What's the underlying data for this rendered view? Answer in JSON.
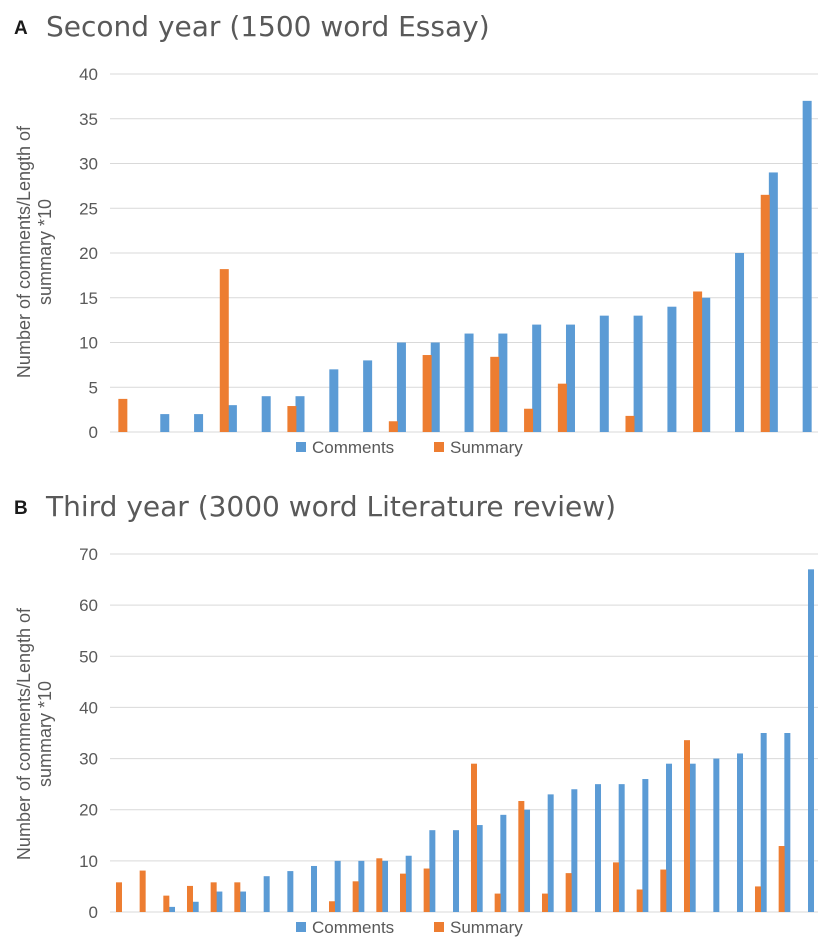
{
  "colors": {
    "comments": "#5b9bd5",
    "summary": "#ed7d31",
    "grid": "#d9d9d9",
    "text": "#595959"
  },
  "panels": [
    {
      "letter": "A",
      "title": "Second year (1500 word Essay)"
    },
    {
      "letter": "B",
      "title": "Third year (3000 word Literature review)"
    }
  ],
  "chart_data": [
    {
      "type": "bar",
      "title": "Second year (1500 word Essay)",
      "xlabel": "",
      "ylabel": "Number of comments/Length of summary *10",
      "ylim": [
        0,
        40
      ],
      "yticks": [
        0,
        5,
        10,
        15,
        20,
        25,
        30,
        35,
        40
      ],
      "grid": true,
      "legend": "bottom",
      "series": [
        {
          "name": "Comments",
          "values": [
            0,
            2,
            2,
            3,
            4,
            4,
            7,
            8,
            10,
            10,
            11,
            11,
            12,
            12,
            13,
            13,
            14,
            15,
            20,
            29,
            37
          ]
        },
        {
          "name": "Summary",
          "values": [
            3.7,
            0,
            0,
            18.2,
            0,
            2.9,
            0,
            0,
            1.2,
            8.6,
            0,
            8.4,
            2.6,
            5.4,
            0,
            1.8,
            0,
            15.7,
            0,
            26.5,
            0
          ]
        }
      ]
    },
    {
      "type": "bar",
      "title": "Third year (3000 word Literature review)",
      "xlabel": "",
      "ylabel": "Number of comments/Length of summary *10",
      "ylim": [
        0,
        70
      ],
      "yticks": [
        0,
        10,
        20,
        30,
        40,
        50,
        60,
        70
      ],
      "grid": true,
      "legend": "bottom",
      "series": [
        {
          "name": "Comments",
          "values": [
            0,
            0,
            1,
            2,
            4,
            4,
            7,
            8,
            9,
            10,
            10,
            10,
            11,
            16,
            16,
            17,
            19,
            20,
            23,
            24,
            25,
            25,
            26,
            29,
            29,
            30,
            31,
            35,
            35,
            67
          ]
        },
        {
          "name": "Summary",
          "values": [
            5.8,
            8.1,
            3.2,
            5.1,
            5.8,
            5.8,
            0,
            0,
            0,
            2.1,
            6,
            10.5,
            7.5,
            8.5,
            0,
            29,
            3.6,
            21.7,
            3.6,
            7.6,
            0,
            9.7,
            4.4,
            8.3,
            33.6,
            0,
            0,
            5,
            12.9,
            0
          ]
        }
      ]
    }
  ]
}
